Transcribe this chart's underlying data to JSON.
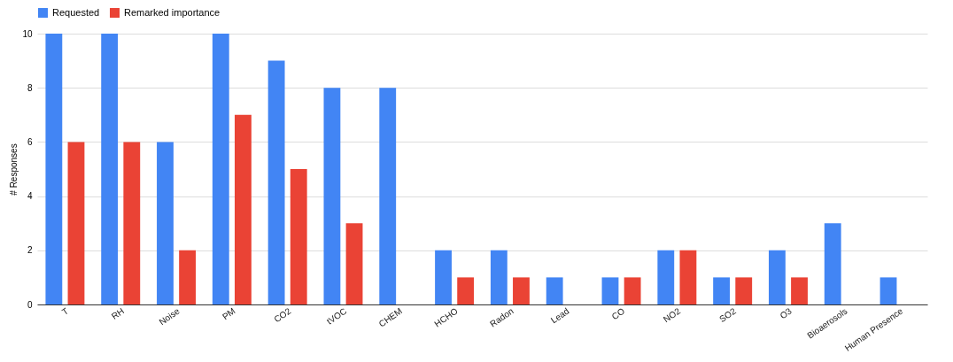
{
  "chart_data": {
    "type": "bar",
    "ylabel": "# Responses",
    "categories": [
      "T",
      "RH",
      "Noise",
      "PM",
      "CO2",
      "tVOC",
      "CHEM",
      "HCHO",
      "Radon",
      "Lead",
      "CO",
      "NO2",
      "SO2",
      "O3",
      "Bioaerosols",
      "Human Presence"
    ],
    "series": [
      {
        "name": "Requested",
        "color": "#4285f4",
        "values": [
          10,
          10,
          6,
          10,
          9,
          8,
          8,
          2,
          2,
          1,
          1,
          2,
          1,
          2,
          3,
          1
        ]
      },
      {
        "name": "Remarked importance",
        "color": "#ea4335",
        "values": [
          6,
          6,
          2,
          7,
          5,
          3,
          0,
          1,
          1,
          0,
          1,
          2,
          1,
          1,
          0,
          0
        ]
      }
    ],
    "ylim": [
      0,
      10
    ],
    "yticks": [
      0,
      2,
      4,
      6,
      8,
      10
    ],
    "grid": "y",
    "legend": "top"
  }
}
